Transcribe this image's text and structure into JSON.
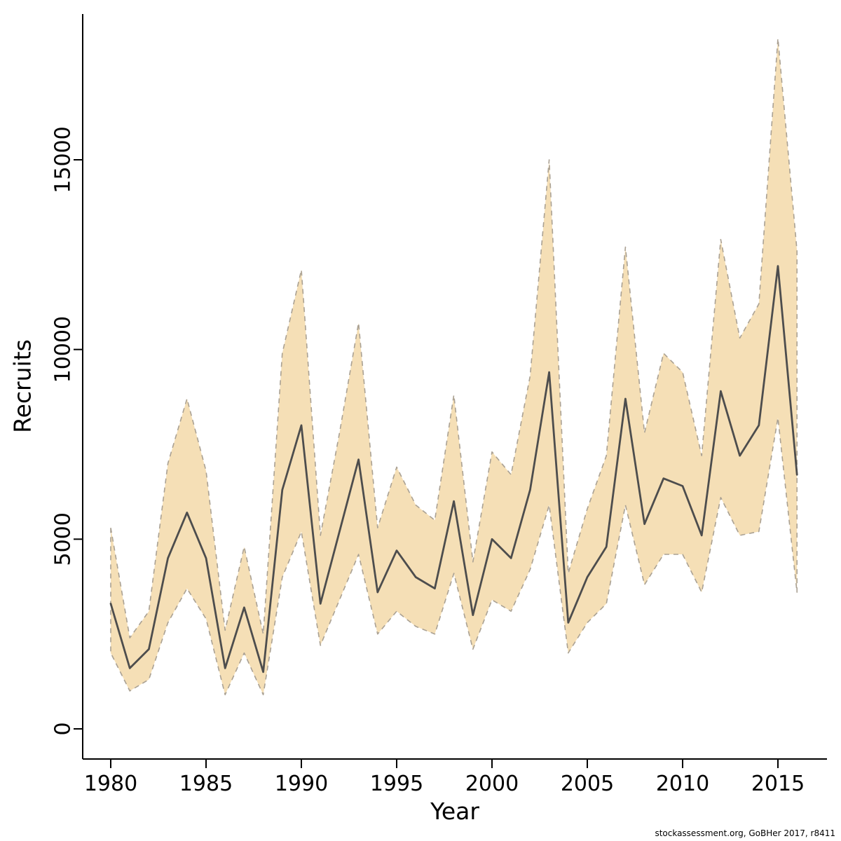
{
  "caption": "stockassessment.org, GoBHer 2017, r8411",
  "chart_data": {
    "type": "line",
    "title": "",
    "xlabel": "Year",
    "ylabel": "Recruits",
    "xlim": [
      1978.5,
      2017.6
    ],
    "ylim": [
      0,
      18800
    ],
    "x_ticks": [
      1980,
      1985,
      1990,
      1995,
      2000,
      2005,
      2010,
      2015
    ],
    "y_ticks": [
      0,
      5000,
      10000,
      15000
    ],
    "grid": false,
    "legend_position": "none",
    "band_fill": "#f5dfb6",
    "band_edge": "#aaa193",
    "line_color": "#4d4d4d",
    "years": [
      1980,
      1981,
      1982,
      1983,
      1984,
      1985,
      1986,
      1987,
      1988,
      1989,
      1990,
      1991,
      1992,
      1993,
      1994,
      1995,
      1996,
      1997,
      1998,
      1999,
      2000,
      2001,
      2002,
      2003,
      2004,
      2005,
      2006,
      2007,
      2008,
      2009,
      2010,
      2011,
      2012,
      2013,
      2014,
      2015,
      2016
    ],
    "series": [
      {
        "name": "median",
        "values": [
          3300,
          1600,
          2100,
          4500,
          5700,
          4500,
          1600,
          3200,
          1500,
          6300,
          8000,
          3300,
          5200,
          7100,
          3600,
          4700,
          4000,
          3700,
          6000,
          3000,
          5000,
          4500,
          6300,
          9400,
          2800,
          4000,
          4800,
          8700,
          5400,
          6600,
          6400,
          5100,
          8900,
          7200,
          8000,
          12200,
          6700
        ]
      },
      {
        "name": "lower",
        "values": [
          2000,
          1000,
          1300,
          2800,
          3700,
          2900,
          900,
          2000,
          900,
          4000,
          5200,
          2200,
          3400,
          4600,
          2500,
          3100,
          2700,
          2500,
          4100,
          2100,
          3400,
          3100,
          4200,
          5900,
          2000,
          2800,
          3300,
          5900,
          3800,
          4600,
          4600,
          3600,
          6100,
          5100,
          5200,
          8200,
          3600
        ]
      },
      {
        "name": "upper",
        "values": [
          5300,
          2400,
          3100,
          7000,
          8700,
          6800,
          2600,
          4800,
          2500,
          9900,
          12100,
          5100,
          7800,
          10700,
          5300,
          6900,
          5900,
          5500,
          8800,
          4400,
          7300,
          6700,
          9300,
          15000,
          4100,
          5800,
          7200,
          12700,
          7800,
          9900,
          9400,
          7200,
          12900,
          10300,
          11200,
          18200,
          12600
        ]
      }
    ]
  }
}
